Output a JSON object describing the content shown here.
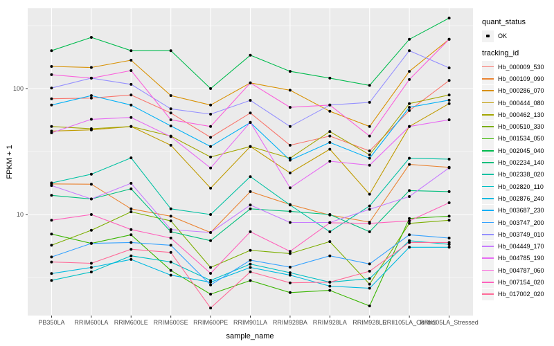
{
  "chart_data": {
    "type": "line",
    "title": "",
    "xlabel": "sample_name",
    "ylabel": "FPKM + 1",
    "yscale": "log10",
    "ylim": [
      1.55,
      440
    ],
    "yticks": [
      10,
      100
    ],
    "ytick_labels": [
      "10",
      "100"
    ],
    "minor_gridlines": [
      3.162,
      31.62,
      316.2
    ],
    "grid": "on",
    "legend": {
      "position": "right",
      "quant_status_title": "quant_status",
      "quant_ok_label": "OK",
      "tracking_id_title": "tracking_id"
    },
    "marker": {
      "shape": "circle",
      "color": "#000000"
    },
    "colors": {
      "background": "#FFFFFF",
      "panel_bg": "#EBEBEB",
      "grid": "#FFFFFF",
      "tick_text": "#4D4D4D",
      "tick_mark": "#333333",
      "axis_title": "#000000",
      "legend_key_bg": "#F2F2F2"
    },
    "categories": [
      "PB350LA",
      "RRIM600LA",
      "RRIM600LE",
      "RRIM600SE",
      "RRIM600PE",
      "RRIM901LA",
      "RRIM928BA",
      "RRIM928LA",
      "RRIM928LE",
      "RRII105LA_Control",
      "RRII105LA_Stressed"
    ],
    "series": [
      {
        "tracking_id": "Hb_000009_530",
        "color": "#F8766D",
        "values": [
          83,
          84,
          89,
          64,
          41,
          64,
          35.5,
          42,
          32,
          67,
          116
        ]
      },
      {
        "tracking_id": "Hb_000109_090",
        "color": "#EA8331",
        "values": [
          17.5,
          17.4,
          11.1,
          9.7,
          7.2,
          15.2,
          12,
          9.9,
          8.7,
          25,
          23.7
        ]
      },
      {
        "tracking_id": "Hb_000286_070",
        "color": "#D89000",
        "values": [
          150,
          147,
          168,
          88,
          74,
          111,
          97,
          66,
          50,
          137,
          246
        ]
      },
      {
        "tracking_id": "Hb_000444_080",
        "color": "#C09B00",
        "values": [
          46,
          47,
          50,
          35.5,
          16.2,
          34.7,
          21.4,
          33,
          14.5,
          50,
          76
        ]
      },
      {
        "tracking_id": "Hb_000462_130",
        "color": "#A3A500",
        "values": [
          50,
          48,
          50,
          42,
          28.6,
          34.7,
          28,
          45.6,
          29.8,
          76,
          89
        ]
      },
      {
        "tracking_id": "Hb_000510_330",
        "color": "#7CAE00",
        "values": [
          5.7,
          7.5,
          10.5,
          8.9,
          3.8,
          5.2,
          4.9,
          6.1,
          2.8,
          8.5,
          9
        ]
      },
      {
        "tracking_id": "Hb_001534_050",
        "color": "#39B600",
        "values": [
          7,
          5.9,
          6.9,
          3.6,
          2.33,
          2.99,
          2.4,
          2.5,
          1.88,
          9.3,
          9.7
        ]
      },
      {
        "tracking_id": "Hb_002045_040",
        "color": "#00BB4E",
        "values": [
          200,
          255,
          200,
          200,
          100,
          184,
          137,
          121,
          106,
          246,
          363
        ]
      },
      {
        "tracking_id": "Hb_002234_140",
        "color": "#00BF7D",
        "values": [
          14.2,
          13.3,
          16,
          7.3,
          6.2,
          11.1,
          10.6,
          10,
          7.3,
          15.5,
          15.2
        ]
      },
      {
        "tracking_id": "Hb_002338_020",
        "color": "#00C1A3",
        "values": [
          17.8,
          20.9,
          28.2,
          11.1,
          10,
          20,
          11.9,
          7.3,
          11.7,
          28,
          27.5
        ]
      },
      {
        "tracking_id": "Hb_002820_110",
        "color": "#00BFC4",
        "values": [
          3,
          3.5,
          4.7,
          4.2,
          3,
          4.04,
          3.45,
          2.9,
          3.1,
          6.2,
          5.8
        ]
      },
      {
        "tracking_id": "Hb_002876_240",
        "color": "#00BAE0",
        "values": [
          3.4,
          3.8,
          4.4,
          3.3,
          2.9,
          3.8,
          3.3,
          2.7,
          2.6,
          5.5,
          5.5
        ]
      },
      {
        "tracking_id": "Hb_003687_230",
        "color": "#00B0F6",
        "values": [
          74,
          88,
          74,
          50.5,
          34.7,
          53.7,
          27,
          37.3,
          28,
          71,
          81
        ]
      },
      {
        "tracking_id": "Hb_003747_200",
        "color": "#35A2FF",
        "values": [
          4.6,
          5.9,
          6,
          5.7,
          2.76,
          4.34,
          3.82,
          4.7,
          4.05,
          6.9,
          6.5
        ]
      },
      {
        "tracking_id": "Hb_003749_010",
        "color": "#9590FF",
        "values": [
          101,
          121,
          108,
          69,
          62.6,
          80.6,
          50,
          74,
          77.7,
          200,
          146
        ]
      },
      {
        "tracking_id": "Hb_004449_170",
        "color": "#C77CFF",
        "values": [
          17,
          13.3,
          17.7,
          7.6,
          7.2,
          11.9,
          8.65,
          8.65,
          11,
          13.9,
          23.5
        ]
      },
      {
        "tracking_id": "Hb_004785_190",
        "color": "#E76BF3",
        "values": [
          44.5,
          57,
          59,
          41.5,
          23.4,
          54,
          16.3,
          26.5,
          24.6,
          50,
          56.5
        ]
      },
      {
        "tracking_id": "Hb_004787_060",
        "color": "#FA62DB",
        "values": [
          129,
          121,
          139,
          56.5,
          50,
          111,
          71,
          74,
          42,
          118,
          246
        ]
      },
      {
        "tracking_id": "Hb_007154_020",
        "color": "#FF62BC",
        "values": [
          9,
          10,
          7.6,
          6.5,
          3.41,
          7.3,
          5.1,
          8.6,
          8.5,
          8.9,
          12.4
        ]
      },
      {
        "tracking_id": "Hb_017002_020",
        "color": "#FF6A98",
        "values": [
          4.2,
          4.1,
          5.3,
          5,
          1.81,
          3.51,
          2.87,
          2.9,
          3.55,
          6,
          6
        ]
      }
    ]
  }
}
